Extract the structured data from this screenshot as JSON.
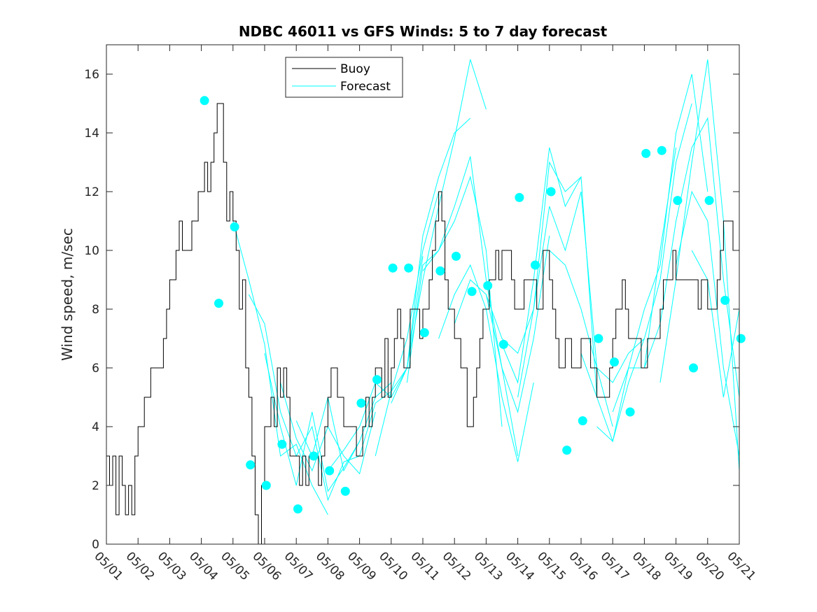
{
  "chart_data": {
    "type": "line",
    "title": "NDBC 46011 vs GFS Winds: 5 to 7 day forecast",
    "xlabel": "",
    "ylabel": "Wind speed, m/sec",
    "xlim": [
      0,
      20
    ],
    "ylim": [
      0,
      17
    ],
    "x_tick_labels": [
      "05/01",
      "05/02",
      "05/03",
      "05/04",
      "05/05",
      "05/06",
      "05/07",
      "05/08",
      "05/09",
      "05/10",
      "05/11",
      "05/12",
      "05/13",
      "05/14",
      "05/15",
      "05/16",
      "05/17",
      "05/18",
      "05/19",
      "05/20",
      "05/21"
    ],
    "y_ticks": [
      0,
      2,
      4,
      6,
      8,
      10,
      12,
      14,
      16
    ],
    "grid": false,
    "legend": {
      "placement": "top-center",
      "entries": [
        "Buoy",
        "Forecast"
      ]
    },
    "colors": {
      "buoy": "#000000",
      "forecast": "#00ffff",
      "markers": "#00ffff"
    },
    "series": [
      {
        "name": "Buoy",
        "x": [
          0.0,
          0.1,
          0.2,
          0.3,
          0.4,
          0.5,
          0.6,
          0.7,
          0.8,
          0.9,
          1.0,
          1.1,
          1.2,
          1.3,
          1.4,
          1.5,
          1.6,
          1.7,
          1.8,
          1.9,
          2.0,
          2.1,
          2.2,
          2.3,
          2.4,
          2.5,
          2.6,
          2.7,
          2.8,
          2.9,
          3.0,
          3.1,
          3.2,
          3.3,
          3.4,
          3.5,
          3.6,
          3.7,
          3.8,
          3.9,
          4.0,
          4.1,
          4.2,
          4.3,
          4.4,
          4.5,
          4.6,
          4.7,
          4.8,
          4.9,
          5.0,
          5.1,
          5.2,
          5.3,
          5.4,
          5.5,
          5.6,
          5.7,
          5.8,
          5.9,
          6.0,
          6.1,
          6.2,
          6.3,
          6.4,
          6.5,
          6.6,
          6.7,
          6.8,
          6.9,
          7.0,
          7.1,
          7.2,
          7.3,
          7.4,
          7.5,
          7.6,
          7.7,
          7.8,
          7.9,
          8.0,
          8.1,
          8.2,
          8.3,
          8.4,
          8.5,
          8.6,
          8.7,
          8.8,
          8.9,
          9.0,
          9.1,
          9.2,
          9.3,
          9.4,
          9.5,
          9.6,
          9.7,
          9.8,
          9.9,
          10.0,
          10.1,
          10.2,
          10.3,
          10.4,
          10.5,
          10.6,
          10.7,
          10.8,
          10.9,
          11.0,
          11.1,
          11.2,
          11.3,
          11.4,
          11.5,
          11.6,
          11.7,
          11.8,
          11.9,
          12.0,
          12.1,
          12.2,
          12.3,
          12.4,
          12.5,
          12.6,
          12.7,
          12.8,
          12.9,
          13.0,
          13.1,
          13.2,
          13.3,
          13.4,
          13.5,
          13.6,
          13.7,
          13.8,
          13.9,
          14.0,
          14.1,
          14.2,
          14.3,
          14.4,
          14.5,
          14.6,
          14.7,
          14.8,
          14.9,
          15.0,
          15.1,
          15.2,
          15.3,
          15.4,
          15.5,
          15.6,
          15.7,
          15.8,
          15.9,
          16.0,
          16.1,
          16.2,
          16.3,
          16.4,
          16.5,
          16.6,
          16.7,
          16.8,
          16.9,
          17.0,
          17.1,
          17.2,
          17.3,
          17.4,
          17.5,
          17.6,
          17.7,
          17.8,
          17.9,
          18.0,
          18.1,
          18.2,
          18.3,
          18.4,
          18.5,
          18.6,
          18.7,
          18.8,
          18.9,
          19.0,
          19.1,
          19.2,
          19.3,
          19.4,
          19.5,
          19.6,
          19.7,
          19.8,
          19.9,
          20.0
        ],
        "values": [
          3,
          2,
          3,
          1,
          3,
          2,
          1,
          2,
          1,
          3,
          4,
          4,
          5,
          5,
          6,
          6,
          6,
          6,
          7,
          8,
          9,
          9,
          10,
          11,
          10,
          10,
          10,
          11,
          11,
          12,
          12,
          13,
          12,
          13,
          14,
          15,
          15,
          13,
          11,
          12,
          11,
          10,
          8,
          9,
          6,
          5,
          3,
          1,
          0,
          2,
          4,
          4,
          5,
          4,
          6,
          5,
          6,
          5,
          3,
          3,
          3,
          2,
          3,
          2,
          3,
          3,
          3,
          2,
          3,
          4,
          5,
          6,
          6,
          5,
          5,
          4,
          4,
          4,
          4,
          3,
          3,
          4,
          5,
          4,
          5,
          6,
          6,
          5,
          7,
          5,
          6,
          7,
          8,
          7,
          6,
          6,
          8,
          8,
          8,
          7,
          8,
          8,
          9,
          10,
          11,
          12,
          11,
          9,
          8,
          8,
          7,
          7,
          6,
          6,
          4,
          4,
          5,
          6,
          7,
          8,
          8,
          9,
          9,
          10,
          9,
          10,
          10,
          10,
          9,
          8,
          8,
          8,
          9,
          9,
          9,
          9,
          8,
          8,
          10,
          10,
          9,
          8,
          7,
          6,
          6,
          7,
          7,
          6,
          6,
          6,
          7,
          7,
          7,
          6,
          6,
          5,
          5,
          5,
          5,
          6,
          7,
          8,
          8,
          9,
          8,
          7,
          7,
          7,
          7,
          6,
          6,
          7,
          7,
          7,
          7,
          8,
          9,
          9,
          9,
          10,
          9,
          9,
          9,
          9,
          9,
          9,
          9,
          8,
          9,
          9,
          8,
          8,
          8,
          9,
          10,
          11,
          11,
          11,
          10,
          10,
          10
        ]
      },
      {
        "name": "Forecast",
        "x": [
          4.0,
          4.5,
          5.0,
          5.5,
          6.0,
          6.5,
          7.0
        ],
        "values": [
          11.0,
          9.0,
          6.8,
          3.0,
          3.4,
          2.0,
          1.0
        ]
      },
      {
        "name": "Forecast",
        "x": [
          4.5,
          5.0,
          5.5,
          6.0,
          6.5,
          7.0,
          7.5
        ],
        "values": [
          8.5,
          7.5,
          4.5,
          3.0,
          4.0,
          1.5,
          2.8
        ]
      },
      {
        "name": "Forecast",
        "x": [
          5.0,
          5.5,
          6.0,
          6.5,
          7.0,
          7.5,
          8.0
        ],
        "values": [
          6.5,
          4.0,
          2.0,
          4.5,
          1.8,
          2.6,
          3.5
        ]
      },
      {
        "name": "Forecast",
        "x": [
          5.5,
          6.0,
          6.5,
          7.0,
          7.5,
          8.0,
          8.5
        ],
        "values": [
          5.5,
          3.6,
          2.5,
          4.0,
          3.0,
          2.4,
          4.5
        ]
      },
      {
        "name": "Forecast",
        "x": [
          6.0,
          6.5,
          7.0,
          7.5,
          8.0,
          8.5,
          9.0
        ],
        "values": [
          4.2,
          3.0,
          5.0,
          2.5,
          3.5,
          5.0,
          5.5
        ]
      },
      {
        "name": "Forecast",
        "x": [
          7.0,
          7.5,
          8.0,
          8.5,
          9.0,
          9.5,
          10.0
        ],
        "values": [
          2.5,
          3.2,
          4.0,
          5.5,
          5.0,
          6.0,
          9.8
        ]
      },
      {
        "name": "Forecast",
        "x": [
          7.5,
          8.0,
          8.5,
          9.0,
          9.5,
          10.0,
          10.5
        ],
        "values": [
          2.8,
          3.0,
          4.8,
          5.2,
          7.0,
          10.0,
          12.0
        ]
      },
      {
        "name": "Forecast",
        "x": [
          8.5,
          9.0,
          9.5,
          10.0,
          10.5,
          11.0,
          11.5
        ],
        "values": [
          3.0,
          5.2,
          6.0,
          10.5,
          12.5,
          14.0,
          14.5
        ]
      },
      {
        "name": "Forecast",
        "x": [
          9.0,
          9.5,
          10.0,
          10.5,
          11.0,
          11.5,
          12.0
        ],
        "values": [
          4.8,
          6.0,
          9.0,
          11.5,
          13.8,
          16.5,
          14.8
        ]
      },
      {
        "name": "Forecast",
        "x": [
          9.5,
          10.0,
          10.5,
          11.0,
          11.5,
          12.0,
          12.5
        ],
        "values": [
          5.5,
          9.5,
          10.0,
          11.0,
          12.5,
          10.0,
          4.0
        ]
      },
      {
        "name": "Forecast",
        "x": [
          10.0,
          10.5,
          11.0,
          11.5,
          12.0,
          12.5,
          13.0
        ],
        "values": [
          9.3,
          10.0,
          11.5,
          13.2,
          9.0,
          6.0,
          3.0
        ]
      },
      {
        "name": "Forecast",
        "x": [
          10.5,
          11.0,
          11.5,
          12.0,
          12.5,
          13.0,
          13.5
        ],
        "values": [
          7.0,
          8.5,
          9.5,
          8.0,
          5.0,
          2.8,
          5.5
        ]
      },
      {
        "name": "Forecast",
        "x": [
          11.0,
          11.5,
          12.0,
          12.5,
          13.0,
          13.5,
          14.0
        ],
        "values": [
          7.5,
          9.0,
          8.5,
          6.0,
          4.5,
          7.0,
          10.5
        ]
      },
      {
        "name": "Forecast",
        "x": [
          12.0,
          12.5,
          13.0,
          13.5,
          14.0,
          14.5,
          15.0
        ],
        "values": [
          8.5,
          7.0,
          6.5,
          8.0,
          13.0,
          12.0,
          12.5
        ]
      },
      {
        "name": "Forecast",
        "x": [
          12.5,
          13.0,
          13.5,
          14.0,
          14.5,
          15.0,
          15.5
        ],
        "values": [
          6.8,
          5.5,
          9.0,
          13.5,
          11.5,
          12.5,
          5.0
        ]
      },
      {
        "name": "Forecast",
        "x": [
          13.0,
          13.5,
          14.0,
          14.5,
          15.0,
          15.5,
          16.0
        ],
        "values": [
          5.0,
          8.0,
          11.5,
          10.0,
          12.0,
          6.0,
          4.0
        ]
      },
      {
        "name": "Forecast",
        "x": [
          14.0,
          14.5,
          15.0,
          15.5,
          16.0,
          16.5,
          17.0
        ],
        "values": [
          10.0,
          9.5,
          8.0,
          6.0,
          5.5,
          6.5,
          7.0
        ]
      },
      {
        "name": "Forecast",
        "x": [
          15.0,
          15.5,
          16.0,
          16.5,
          17.0,
          17.5,
          18.0
        ],
        "values": [
          6.5,
          5.0,
          3.5,
          6.0,
          6.0,
          10.0,
          13.5
        ]
      },
      {
        "name": "Forecast",
        "x": [
          15.5,
          16.0,
          16.5,
          17.0,
          17.5,
          18.0,
          18.5
        ],
        "values": [
          4.0,
          3.5,
          5.5,
          7.0,
          9.0,
          13.0,
          15.0
        ]
      },
      {
        "name": "Forecast",
        "x": [
          16.0,
          16.5,
          17.0,
          17.5,
          18.0,
          18.5,
          19.0
        ],
        "values": [
          4.5,
          6.0,
          8.0,
          9.5,
          14.0,
          16.0,
          12.0
        ]
      },
      {
        "name": "Forecast",
        "x": [
          17.0,
          17.5,
          18.0,
          18.5,
          19.0,
          19.5,
          20.0
        ],
        "values": [
          6.0,
          7.5,
          11.0,
          13.5,
          14.5,
          9.0,
          5.0
        ]
      },
      {
        "name": "Forecast",
        "x": [
          17.5,
          18.0,
          18.5,
          19.0,
          19.5,
          20.0
        ],
        "values": [
          5.5,
          9.0,
          13.0,
          16.5,
          11.0,
          2.5
        ]
      },
      {
        "name": "Forecast",
        "x": [
          18.0,
          18.5,
          19.0,
          19.5,
          20.0
        ],
        "values": [
          9.5,
          12.0,
          11.0,
          6.0,
          3.0
        ]
      },
      {
        "name": "Forecast",
        "x": [
          18.5,
          19.0,
          19.5,
          20.0
        ],
        "values": [
          10.0,
          9.0,
          5.0,
          8.0
        ]
      }
    ],
    "markers": {
      "x": [
        3.1,
        3.55,
        4.05,
        4.55,
        5.05,
        5.55,
        6.05,
        6.55,
        7.05,
        7.55,
        8.05,
        8.55,
        9.05,
        9.55,
        10.05,
        10.55,
        11.05,
        11.55,
        12.05,
        12.55,
        13.05,
        13.55,
        14.05,
        14.55,
        15.05,
        15.55,
        16.05,
        16.55,
        17.05,
        17.55,
        18.05,
        18.55,
        19.05,
        19.55,
        20.05
      ],
      "values": [
        15.1,
        8.2,
        10.8,
        2.7,
        2.0,
        3.4,
        1.2,
        3.0,
        2.5,
        1.8,
        4.8,
        5.6,
        9.4,
        9.4,
        7.2,
        9.3,
        9.8,
        8.6,
        8.8,
        6.8,
        11.8,
        9.5,
        12.0,
        3.2,
        4.2,
        7.0,
        6.2,
        4.5,
        13.3,
        13.4,
        11.7,
        6.0,
        11.7,
        8.3,
        7.0
      ]
    }
  }
}
